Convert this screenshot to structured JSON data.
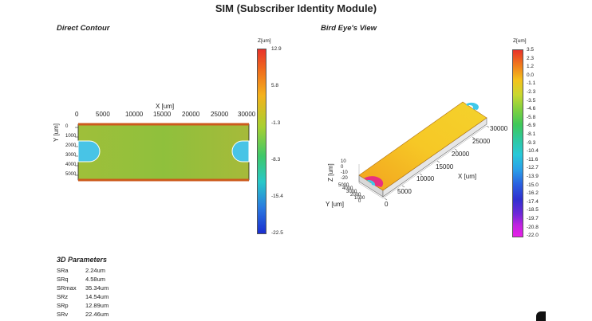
{
  "title": "SIM (Subscriber Identity Module)",
  "left_panel": {
    "title": "Direct Contour",
    "x_axis_label": "X [um]",
    "y_axis_label": "Y [um]",
    "x_ticks": [
      "0",
      "5000",
      "10000",
      "15000",
      "20000",
      "25000",
      "30000"
    ],
    "y_ticks": [
      "0",
      "1000",
      "2000",
      "3000",
      "4000",
      "5000"
    ],
    "colorbar": {
      "label": "Z[um]",
      "ticks": [
        "12.9",
        "5.8",
        "-1.3",
        "-8.3",
        "-15.4",
        "-22.5"
      ]
    }
  },
  "right_panel": {
    "title": "Bird Eye's View",
    "x_axis_label": "X [um]",
    "y_axis_label": "Y [um]",
    "z_axis_label": "Z [um]",
    "x_ticks": [
      "0",
      "5000",
      "10000",
      "15000",
      "20000",
      "25000",
      "30000"
    ],
    "y_ticks": [
      "0",
      "1000",
      "2000",
      "3000",
      "4000",
      "5000"
    ],
    "z_ticks": [
      "10",
      "0",
      "-10",
      "-20"
    ],
    "colorbar": {
      "label": "Z[um]",
      "ticks": [
        "3.5",
        "2.3",
        "1.2",
        "0.0",
        "-1.1",
        "-2.3",
        "-3.5",
        "-4.6",
        "-5.8",
        "-6.9",
        "-8.1",
        "-9.3",
        "-10.4",
        "-11.6",
        "-12.7",
        "-13.9",
        "-15.0",
        "-16.2",
        "-17.4",
        "-18.5",
        "-19.7",
        "-20.8",
        "-22.0"
      ]
    }
  },
  "parameters": {
    "title": "3D Parameters",
    "rows": [
      {
        "name": "SRa",
        "value": "2.24um"
      },
      {
        "name": "SRq",
        "value": "4.58um"
      },
      {
        "name": "SRmax",
        "value": "35.34um"
      },
      {
        "name": "SRz",
        "value": "14.54um"
      },
      {
        "name": "SRp",
        "value": "12.89um"
      },
      {
        "name": "SRv",
        "value": "22.46um"
      }
    ]
  },
  "colors": {
    "contour_fill": "#8fbf3a",
    "surface_fill": "#f5c21c",
    "cut_fill": "#3fc8ea"
  }
}
